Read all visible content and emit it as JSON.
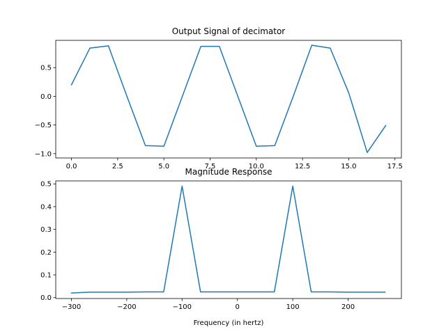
{
  "chart_data": [
    {
      "type": "line",
      "title": "Output Signal of decimator",
      "xlabel": "",
      "ylabel": "",
      "xlim": [
        -0.85,
        17.85
      ],
      "ylim": [
        -1.075,
        0.975
      ],
      "xticks": [
        0.0,
        2.5,
        5.0,
        7.5,
        10.0,
        12.5,
        15.0,
        17.5
      ],
      "xtick_labels": [
        "0.0",
        "2.5",
        "5.0",
        "7.5",
        "10.0",
        "12.5",
        "15.0",
        "17.5"
      ],
      "yticks": [
        -1.0,
        -0.5,
        0.0,
        0.5
      ],
      "ytick_labels": [
        "−1.0",
        "−0.5",
        "0.0",
        "0.5"
      ],
      "grid": false,
      "color": "#1f77b4",
      "series": [
        {
          "x": [
            0,
            1,
            2,
            3,
            4,
            5,
            6,
            7,
            8,
            9,
            10,
            11,
            12,
            13,
            14,
            15,
            16,
            17
          ],
          "y": [
            0.2,
            0.84,
            0.88,
            0.0,
            -0.86,
            -0.87,
            0.0,
            0.87,
            0.87,
            0.0,
            -0.87,
            -0.86,
            0.0,
            0.89,
            0.84,
            0.06,
            -0.98,
            -0.51
          ]
        }
      ]
    },
    {
      "type": "line",
      "title": "Magnitude Response",
      "xlabel": "Frequency (in hertz)",
      "ylabel": "",
      "xlim": [
        -328.3,
        296.3
      ],
      "ylim": [
        -0.004,
        0.513
      ],
      "xticks": [
        -300,
        -200,
        -100,
        0,
        100,
        200
      ],
      "xtick_labels": [
        "−300",
        "−200",
        "−100",
        "0",
        "100",
        "200"
      ],
      "yticks": [
        0.0,
        0.1,
        0.2,
        0.3,
        0.4,
        0.5
      ],
      "ytick_labels": [
        "0.0",
        "0.1",
        "0.2",
        "0.3",
        "0.4",
        "0.5"
      ],
      "grid": false,
      "color": "#1f77b4",
      "series": [
        {
          "x": [
            -300,
            -266.7,
            -233.3,
            -200,
            -166.7,
            -133.3,
            -100,
            -66.7,
            -33.3,
            0,
            33.3,
            66.7,
            100,
            133.3,
            166.7,
            200,
            233.3,
            266.7
          ],
          "y": [
            0.02,
            0.024,
            0.024,
            0.024,
            0.025,
            0.025,
            0.49,
            0.025,
            0.025,
            0.025,
            0.025,
            0.025,
            0.49,
            0.025,
            0.025,
            0.024,
            0.024,
            0.024
          ]
        }
      ]
    }
  ]
}
